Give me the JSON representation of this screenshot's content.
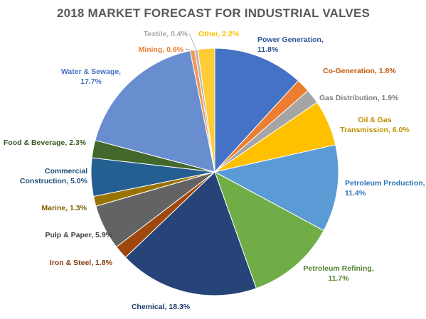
{
  "chart_data": {
    "type": "pie",
    "title": "2018 MARKET FORECAST FOR INDUSTRIAL VALVES",
    "slices": [
      {
        "name": "Power Generation",
        "value": 11.8,
        "color": "#4472C4",
        "label_color": "#2F5597",
        "label_lines": [
          "Power Generation,",
          "11.8%"
        ]
      },
      {
        "name": "Co-Generation",
        "value": 1.8,
        "color": "#ED7D31",
        "label_color": "#C55A11",
        "label_lines": [
          "Co-Generation, 1.8%"
        ]
      },
      {
        "name": "Gas Distribution",
        "value": 1.9,
        "color": "#A5A5A5",
        "label_color": "#7F7F7F",
        "label_lines": [
          "Gas Distribution, 1.9%"
        ]
      },
      {
        "name": "Oil & Gas Transmission",
        "value": 6.0,
        "color": "#FFC000",
        "label_color": "#BF9000",
        "label_lines": [
          "Oil & Gas",
          "Transmission, 6.0%"
        ]
      },
      {
        "name": "Petroleum Production",
        "value": 11.4,
        "color": "#5B9BD5",
        "label_color": "#2E75B6",
        "label_lines": [
          "Petroleum Production,",
          "11.4%"
        ]
      },
      {
        "name": "Petroleum Refining",
        "value": 11.7,
        "color": "#70AD47",
        "label_color": "#548235",
        "label_lines": [
          "Petroleum Refining,",
          "11.7%"
        ]
      },
      {
        "name": "Chemical",
        "value": 18.3,
        "color": "#264478",
        "label_color": "#1F3864",
        "label_lines": [
          "Chemical, 18.3%"
        ]
      },
      {
        "name": "Iron & Steel",
        "value": 1.8,
        "color": "#9E480E",
        "label_color": "#843C0C",
        "label_lines": [
          "Iron & Steel, 1.8%"
        ]
      },
      {
        "name": "Pulp & Paper",
        "value": 5.9,
        "color": "#636363",
        "label_color": "#404040",
        "label_lines": [
          "Pulp & Paper, 5.9%"
        ]
      },
      {
        "name": "Marine",
        "value": 1.3,
        "color": "#997300",
        "label_color": "#7F6000",
        "label_lines": [
          "Marine, 1.3%"
        ]
      },
      {
        "name": "Commercial Construction",
        "value": 5.0,
        "color": "#255E91",
        "label_color": "#1F4E79",
        "label_lines": [
          "Commercial",
          "Construction, 5.0%"
        ]
      },
      {
        "name": "Food & Beverage",
        "value": 2.3,
        "color": "#43682B",
        "label_color": "#385723",
        "label_lines": [
          "Food & Beverage, 2.3%"
        ]
      },
      {
        "name": "Water & Sewage",
        "value": 17.7,
        "color": "#698ED0",
        "label_color": "#4472C4",
        "label_lines": [
          "Water & Sewage,",
          "17.7%"
        ]
      },
      {
        "name": "Mining",
        "value": 0.6,
        "color": "#F1975A",
        "label_color": "#ED7D31",
        "label_lines": [
          "Mining, 0.6%"
        ]
      },
      {
        "name": "Textile",
        "value": 0.4,
        "color": "#B7B7B7",
        "label_color": "#A5A5A5",
        "label_lines": [
          "Textile, 0.4%"
        ]
      },
      {
        "name": "Other",
        "value": 2.2,
        "color": "#FFCD33",
        "label_color": "#FFC000",
        "label_lines": [
          "Other, 2.2%"
        ]
      }
    ]
  }
}
